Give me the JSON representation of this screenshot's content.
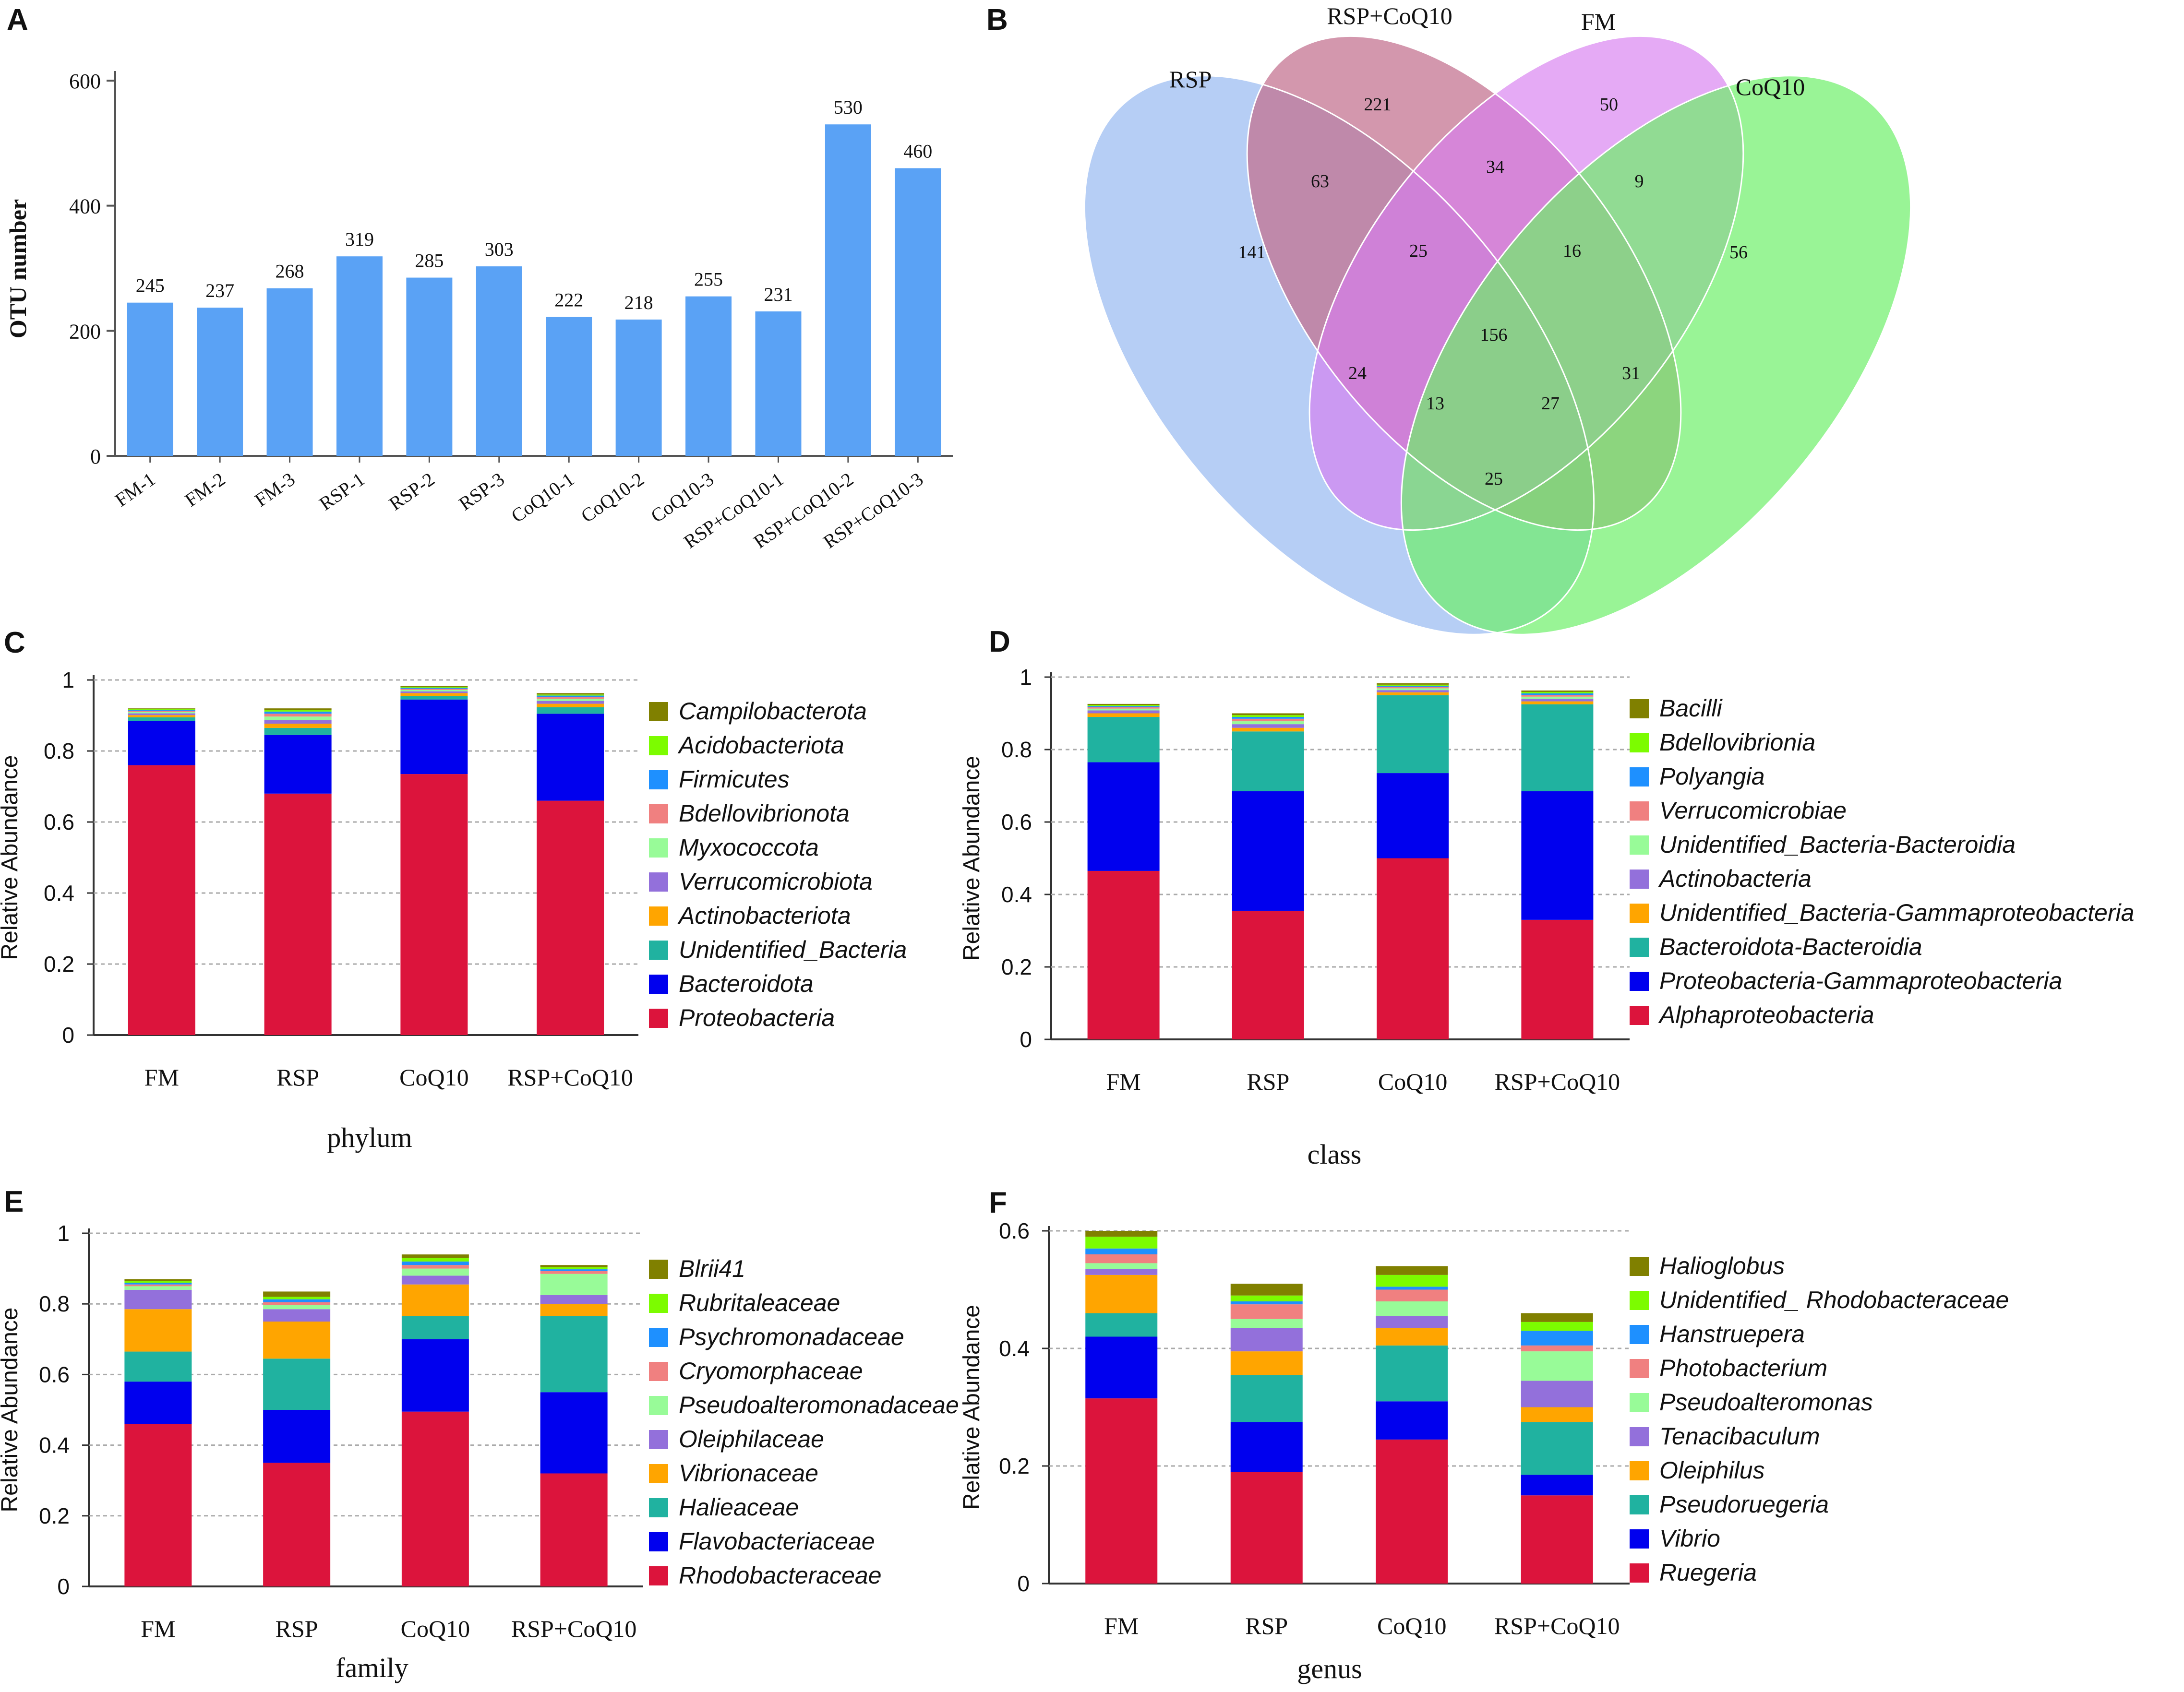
{
  "panels": {
    "A": "A",
    "B": "B",
    "C": "C",
    "D": "D",
    "E": "E",
    "F": "F"
  },
  "colors": {
    "bar_blue": "#5aa2f5",
    "venn_rsp": "#9ebef2",
    "venn_rspcoq10": "#c26f8d",
    "venn_fm": "#d77cf0",
    "venn_coq10": "#6ef06a"
  },
  "chart_data": [
    {
      "id": "A",
      "type": "bar",
      "title": "",
      "xlabel": "",
      "ylabel": "OTU number",
      "ylim": [
        0,
        600
      ],
      "yticks": [
        "0",
        "200",
        "400",
        "600"
      ],
      "categories": [
        "FM-1",
        "FM-2",
        "FM-3",
        "RSP-1",
        "RSP-2",
        "RSP-3",
        "CoQ10-1",
        "CoQ10-2",
        "CoQ10-3",
        "RSP+CoQ10-1",
        "RSP+CoQ10-2",
        "RSP+CoQ10-3"
      ],
      "values": [
        245,
        237,
        268,
        319,
        285,
        303,
        222,
        218,
        255,
        231,
        530,
        460
      ],
      "data_labels": [
        "245",
        "237",
        "268",
        "319",
        "285",
        "303",
        "222",
        "218",
        "255",
        "231",
        "530",
        "460"
      ]
    },
    {
      "id": "B",
      "type": "venn",
      "sets": [
        "RSP",
        "RSP+CoQ10",
        "FM",
        "CoQ10"
      ],
      "regions": [
        {
          "sets": [
            "RSP"
          ],
          "value": "141"
        },
        {
          "sets": [
            "RSP+CoQ10"
          ],
          "value": "221"
        },
        {
          "sets": [
            "FM"
          ],
          "value": "50"
        },
        {
          "sets": [
            "CoQ10"
          ],
          "value": "56"
        },
        {
          "sets": [
            "RSP",
            "RSP+CoQ10"
          ],
          "value": "63"
        },
        {
          "sets": [
            "RSP+CoQ10",
            "FM"
          ],
          "value": "34"
        },
        {
          "sets": [
            "FM",
            "CoQ10"
          ],
          "value": "9"
        },
        {
          "sets": [
            "RSP",
            "RSP+CoQ10",
            "FM"
          ],
          "value": "25"
        },
        {
          "sets": [
            "RSP+CoQ10",
            "FM",
            "CoQ10"
          ],
          "value": "16"
        },
        {
          "sets": [
            "RSP",
            "RSP+CoQ10",
            "FM",
            "CoQ10"
          ],
          "value": "156"
        },
        {
          "sets": [
            "RSP",
            "FM"
          ],
          "value": "24"
        },
        {
          "sets": [
            "RSP+CoQ10",
            "CoQ10"
          ],
          "value": "31"
        },
        {
          "sets": [
            "RSP",
            "FM",
            "CoQ10"
          ],
          "value": "13"
        },
        {
          "sets": [
            "RSP",
            "RSP+CoQ10",
            "CoQ10"
          ],
          "value": "27"
        },
        {
          "sets": [
            "RSP",
            "CoQ10"
          ],
          "value": "25"
        }
      ]
    },
    {
      "id": "C",
      "type": "bar",
      "stacked": true,
      "xlabel": "phylum",
      "ylabel": "Relative Abundance",
      "ylim": [
        0,
        1
      ],
      "yticks": [
        "0",
        "0.2",
        "0.4",
        "0.6",
        "0.8",
        "1"
      ],
      "categories": [
        "FM",
        "RSP",
        "CoQ10",
        "RSP+CoQ10"
      ],
      "series": [
        {
          "name": "Proteobacteria",
          "color": "#dc143c",
          "values": [
            0.76,
            0.68,
            0.735,
            0.66
          ]
        },
        {
          "name": "Bacteroidota",
          "color": "#0000ee",
          "values": [
            0.125,
            0.165,
            0.21,
            0.245
          ]
        },
        {
          "name": "Unidentified_Bacteria",
          "color": "#20b2a0",
          "values": [
            0.01,
            0.02,
            0.01,
            0.018
          ]
        },
        {
          "name": "Actinobacteriota",
          "color": "#ffa500",
          "values": [
            0.006,
            0.012,
            0.008,
            0.01
          ]
        },
        {
          "name": "Verrucomicrobiota",
          "color": "#9370db",
          "values": [
            0.005,
            0.01,
            0.005,
            0.008
          ]
        },
        {
          "name": "Myxococcota",
          "color": "#98fb98",
          "values": [
            0.004,
            0.01,
            0.004,
            0.006
          ]
        },
        {
          "name": "Bdellovibrionota",
          "color": "#f08080",
          "values": [
            0.003,
            0.008,
            0.003,
            0.005
          ]
        },
        {
          "name": "Firmicutes",
          "color": "#1e90ff",
          "values": [
            0.003,
            0.006,
            0.003,
            0.004
          ]
        },
        {
          "name": "Acidobacteriota",
          "color": "#7cfc00",
          "values": [
            0.002,
            0.004,
            0.002,
            0.003
          ]
        },
        {
          "name": "Campilobacterota",
          "color": "#808000",
          "values": [
            0.002,
            0.005,
            0.003,
            0.004
          ]
        }
      ]
    },
    {
      "id": "D",
      "type": "bar",
      "stacked": true,
      "xlabel": "class",
      "ylabel": "Relative Abundance",
      "ylim": [
        0,
        1
      ],
      "yticks": [
        "0",
        "0.2",
        "0.4",
        "0.6",
        "0.8",
        "1"
      ],
      "categories": [
        "FM",
        "RSP",
        "CoQ10",
        "RSP+CoQ10"
      ],
      "series": [
        {
          "name": "Alphaproteobacteria",
          "color": "#dc143c",
          "values": [
            0.465,
            0.355,
            0.5,
            0.33
          ]
        },
        {
          "name": "Proteobacteria-Gammaproteobacteria",
          "color": "#0000ee",
          "values": [
            0.3,
            0.33,
            0.235,
            0.355
          ]
        },
        {
          "name": "Bacteroidota-Bacteroidia",
          "color": "#20b2a0",
          "values": [
            0.125,
            0.165,
            0.215,
            0.24
          ]
        },
        {
          "name": "Unidentified_Bacteria-Gammaproteobacteria",
          "color": "#ffa500",
          "values": [
            0.01,
            0.01,
            0.008,
            0.008
          ]
        },
        {
          "name": "Actinobacteria",
          "color": "#9370db",
          "values": [
            0.008,
            0.01,
            0.006,
            0.007
          ]
        },
        {
          "name": "Unidentified_Bacteria-Bacteroidia",
          "color": "#98fb98",
          "values": [
            0.005,
            0.008,
            0.005,
            0.006
          ]
        },
        {
          "name": "Verrucomicrobiae",
          "color": "#f08080",
          "values": [
            0.004,
            0.007,
            0.004,
            0.005
          ]
        },
        {
          "name": "Polyangia",
          "color": "#1e90ff",
          "values": [
            0.003,
            0.005,
            0.003,
            0.004
          ]
        },
        {
          "name": "Bdellovibrionia",
          "color": "#7cfc00",
          "values": [
            0.003,
            0.005,
            0.003,
            0.004
          ]
        },
        {
          "name": "Bacilli",
          "color": "#808000",
          "values": [
            0.003,
            0.005,
            0.004,
            0.004
          ]
        }
      ]
    },
    {
      "id": "E",
      "type": "bar",
      "stacked": true,
      "xlabel": "family",
      "ylabel": "Relative Abundance",
      "ylim": [
        0,
        1
      ],
      "yticks": [
        "0",
        "0.2",
        "0.4",
        "0.6",
        "0.8",
        "1"
      ],
      "categories": [
        "FM",
        "RSP",
        "CoQ10",
        "RSP+CoQ10"
      ],
      "series": [
        {
          "name": "Rhodobacteraceae",
          "color": "#dc143c",
          "values": [
            0.46,
            0.35,
            0.495,
            0.32
          ]
        },
        {
          "name": "Flavobacteriaceae",
          "color": "#0000ee",
          "values": [
            0.12,
            0.15,
            0.205,
            0.23
          ]
        },
        {
          "name": "Halieaceae",
          "color": "#20b2a0",
          "values": [
            0.085,
            0.145,
            0.065,
            0.215
          ]
        },
        {
          "name": "Vibrionaceae",
          "color": "#ffa500",
          "values": [
            0.12,
            0.105,
            0.09,
            0.035
          ]
        },
        {
          "name": "Oleiphilaceae",
          "color": "#9370db",
          "values": [
            0.055,
            0.035,
            0.025,
            0.025
          ]
        },
        {
          "name": "Pseudoalteromonadaceae",
          "color": "#98fb98",
          "values": [
            0.01,
            0.012,
            0.02,
            0.06
          ]
        },
        {
          "name": "Cryomorphaceae",
          "color": "#f08080",
          "values": [
            0.005,
            0.008,
            0.01,
            0.008
          ]
        },
        {
          "name": "Psychromonadaceae",
          "color": "#1e90ff",
          "values": [
            0.005,
            0.008,
            0.01,
            0.005
          ]
        },
        {
          "name": "Rubritaleaceae",
          "color": "#7cfc00",
          "values": [
            0.005,
            0.007,
            0.01,
            0.006
          ]
        },
        {
          "name": "Blrii41",
          "color": "#808000",
          "values": [
            0.005,
            0.015,
            0.01,
            0.006
          ]
        }
      ]
    },
    {
      "id": "F",
      "type": "bar",
      "stacked": true,
      "xlabel": "genus",
      "ylabel": "Relative Abundance",
      "ylim": [
        0,
        0.6
      ],
      "yticks": [
        "0",
        "0.2",
        "0.4",
        "0.6"
      ],
      "categories": [
        "FM",
        "RSP",
        "CoQ10",
        "RSP+CoQ10"
      ],
      "series": [
        {
          "name": "Ruegeria",
          "color": "#dc143c",
          "values": [
            0.315,
            0.19,
            0.245,
            0.15
          ]
        },
        {
          "name": "Vibrio",
          "color": "#0000ee",
          "values": [
            0.105,
            0.085,
            0.065,
            0.035
          ]
        },
        {
          "name": "Pseudoruegeria",
          "color": "#20b2a0",
          "values": [
            0.04,
            0.08,
            0.095,
            0.09
          ]
        },
        {
          "name": "Oleiphilus",
          "color": "#ffa500",
          "values": [
            0.065,
            0.04,
            0.03,
            0.025
          ]
        },
        {
          "name": "Tenacibaculum",
          "color": "#9370db",
          "values": [
            0.01,
            0.04,
            0.02,
            0.045
          ]
        },
        {
          "name": "Pseudoalteromonas",
          "color": "#98fb98",
          "values": [
            0.01,
            0.015,
            0.025,
            0.05
          ]
        },
        {
          "name": "Photobacterium",
          "color": "#f08080",
          "values": [
            0.015,
            0.025,
            0.02,
            0.01
          ]
        },
        {
          "name": "Hanstruepera",
          "color": "#1e90ff",
          "values": [
            0.01,
            0.005,
            0.005,
            0.025
          ]
        },
        {
          "name": "Unidentified_ Rhodobacteraceae",
          "color": "#7cfc00",
          "values": [
            0.02,
            0.01,
            0.02,
            0.015
          ]
        },
        {
          "name": "Halioglobus",
          "color": "#808000",
          "values": [
            0.01,
            0.02,
            0.015,
            0.015
          ]
        }
      ]
    }
  ]
}
